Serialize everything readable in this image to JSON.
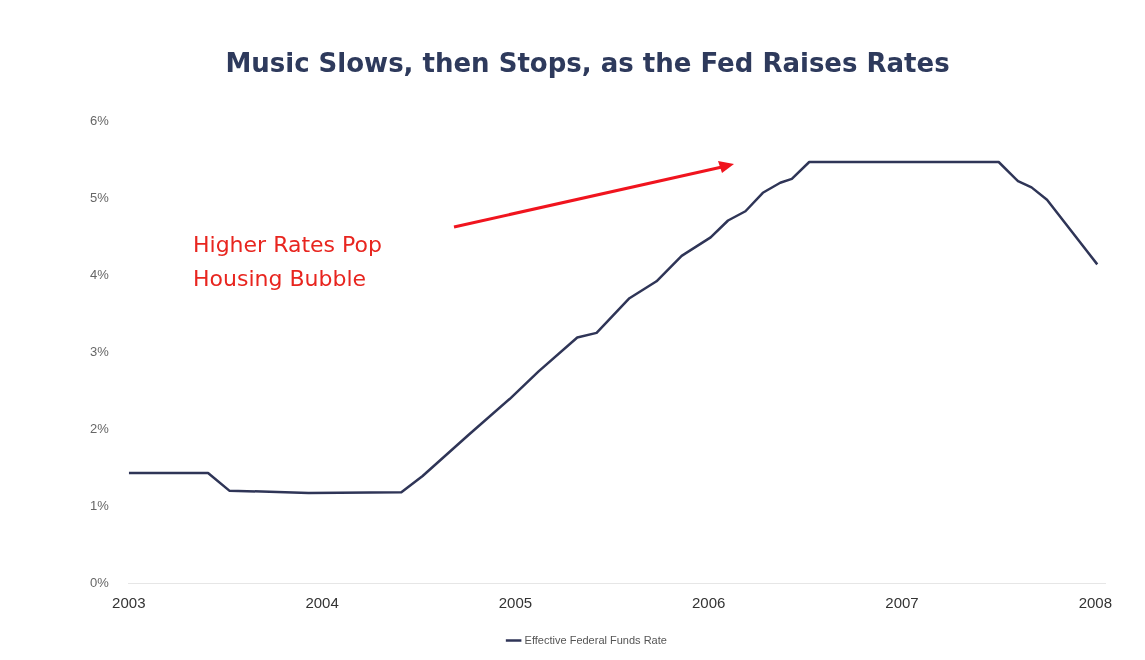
{
  "chart_data": {
    "type": "line",
    "title": "Music Slows, then Stops, as the Fed Raises Rates",
    "annotations": [
      "Higher Rates Pop Housing Bubble"
    ],
    "x": [
      2003.0,
      2003.41,
      2003.52,
      2003.93,
      2004.41,
      2004.52,
      2004.76,
      2004.97,
      2005.12,
      2005.32,
      2005.42,
      2005.59,
      2005.73,
      2005.86,
      2006.01,
      2006.1,
      2006.19,
      2006.28,
      2006.37,
      2006.43,
      2006.52,
      2007.5,
      2007.6,
      2007.67,
      2007.75,
      2008.01
    ],
    "series": [
      {
        "name": "Effective Federal Funds Rate",
        "color": "#2f3557",
        "values": [
          1.43,
          1.43,
          1.2,
          1.17,
          1.18,
          1.39,
          1.93,
          2.39,
          2.75,
          3.19,
          3.25,
          3.7,
          3.92,
          4.25,
          4.49,
          4.71,
          4.83,
          5.07,
          5.2,
          5.25,
          5.47,
          5.47,
          5.22,
          5.14,
          4.98,
          4.14
        ]
      }
    ],
    "xlim": [
      2003,
      2008.05
    ],
    "xticks": [
      2003,
      2004,
      2005,
      2006,
      2007,
      2008
    ],
    "ylim": [
      0,
      6
    ],
    "yticks": [
      {
        "value": 0,
        "label": "0%"
      },
      {
        "value": 1,
        "label": "1%"
      },
      {
        "value": 2,
        "label": "2%"
      },
      {
        "value": 3,
        "label": "3%"
      },
      {
        "value": 4,
        "label": "4%"
      },
      {
        "value": 5,
        "label": "5%"
      },
      {
        "value": 6,
        "label": "6%"
      }
    ],
    "grid": false,
    "legend": "bottom",
    "marker": "none",
    "line_style": "solid"
  }
}
